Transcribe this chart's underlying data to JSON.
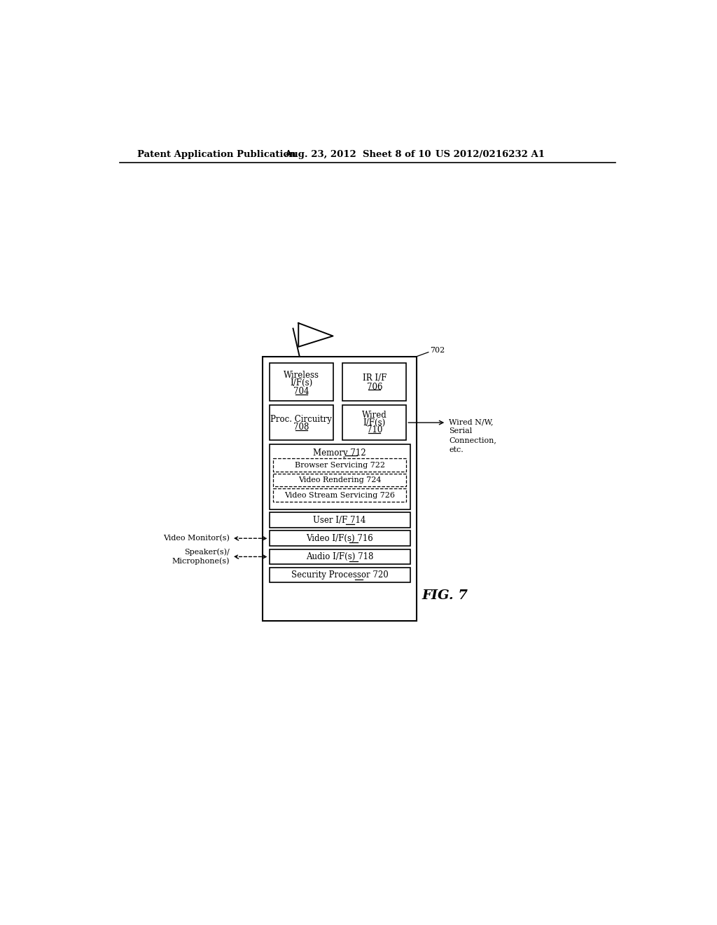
{
  "bg_color": "#ffffff",
  "header_left": "Patent Application Publication",
  "header_mid": "Aug. 23, 2012  Sheet 8 of 10",
  "header_right": "US 2012/0216232 A1",
  "fig_label": "FIG. 7",
  "main_box_label": "702",
  "annotations": {
    "wired_nw": "Wired N/W,\nSerial\nConnection,\netc.",
    "video_monitor": "Video Monitor(s)",
    "speaker": "Speaker(s)/\nMicrophone(s)"
  }
}
